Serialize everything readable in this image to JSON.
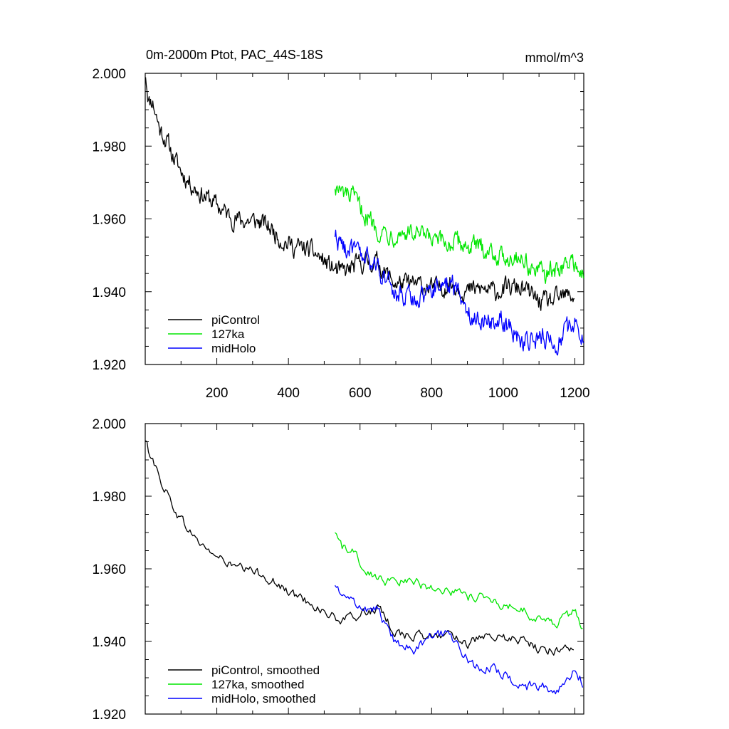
{
  "chart_data": [
    {
      "type": "line",
      "title": "0m-2000m Ptot, PAC_44S-18S",
      "units": "mmol/m^3",
      "xlim": [
        0,
        1225
      ],
      "ylim": [
        1.92,
        2.0
      ],
      "xticks": [
        200,
        400,
        600,
        800,
        1000,
        1200
      ],
      "xtick_labels": [
        "200",
        "400",
        "600",
        "800",
        "1000",
        "1200"
      ],
      "yticks": [
        1.92,
        1.94,
        1.96,
        1.98,
        2.0
      ],
      "ytick_labels": [
        "1.920",
        "1.940",
        "1.960",
        "1.980",
        "2.000"
      ],
      "legend_position": "bottom-left",
      "series": [
        {
          "name": "piControl",
          "color": "#000000",
          "x": [
            1,
            10,
            20,
            40,
            60,
            80,
            100,
            130,
            160,
            200,
            250,
            300,
            350,
            400,
            450,
            500,
            550,
            600,
            650,
            700,
            750,
            800,
            850,
            900,
            950,
            1000,
            1050,
            1100,
            1150,
            1200
          ],
          "values": [
            2.0,
            1.992,
            1.992,
            1.984,
            1.981,
            1.977,
            1.974,
            1.97,
            1.966,
            1.963,
            1.961,
            1.959,
            1.957,
            1.954,
            1.951,
            1.948,
            1.946,
            1.947,
            1.948,
            1.943,
            1.941,
            1.941,
            1.943,
            1.939,
            1.941,
            1.941,
            1.94,
            1.938,
            1.938,
            1.938
          ],
          "noise": 0.0022
        },
        {
          "name": "127ka",
          "color": "#00e600",
          "x": [
            530,
            550,
            580,
            600,
            650,
            700,
            750,
            800,
            850,
            900,
            950,
            1000,
            1050,
            1100,
            1150,
            1200,
            1225
          ],
          "values": [
            1.97,
            1.967,
            1.965,
            1.962,
            1.958,
            1.956,
            1.955,
            1.955,
            1.953,
            1.952,
            1.953,
            1.949,
            1.949,
            1.946,
            1.945,
            1.948,
            1.944
          ],
          "noise": 0.0022
        },
        {
          "name": "midHolo",
          "color": "#0000ff",
          "x": [
            530,
            550,
            580,
            600,
            650,
            700,
            750,
            800,
            850,
            900,
            950,
            1000,
            1050,
            1100,
            1150,
            1200,
            1225
          ],
          "values": [
            1.956,
            1.952,
            1.95,
            1.95,
            1.948,
            1.938,
            1.938,
            1.942,
            1.942,
            1.935,
            1.933,
            1.931,
            1.927,
            1.928,
            1.925,
            1.932,
            1.93
          ],
          "noise": 0.0024
        }
      ]
    },
    {
      "type": "line",
      "title": "",
      "units": "",
      "xlim": [
        0,
        1225
      ],
      "ylim": [
        1.92,
        2.0
      ],
      "xticks": [
        200,
        400,
        600,
        800,
        1000,
        1200
      ],
      "xtick_labels": [],
      "yticks": [
        1.92,
        1.94,
        1.96,
        1.98,
        2.0
      ],
      "ytick_labels": [
        "1.920",
        "1.940",
        "1.960",
        "1.980",
        "2.000"
      ],
      "legend_position": "bottom-left",
      "series": [
        {
          "name": "piControl, smoothed",
          "color": "#000000",
          "x": [
            1,
            10,
            20,
            40,
            60,
            80,
            100,
            130,
            160,
            200,
            250,
            300,
            350,
            400,
            450,
            500,
            550,
            600,
            650,
            700,
            750,
            800,
            850,
            900,
            950,
            1000,
            1050,
            1100,
            1150,
            1200
          ],
          "values": [
            1.995,
            1.992,
            1.991,
            1.984,
            1.981,
            1.977,
            1.974,
            1.97,
            1.966,
            1.963,
            1.961,
            1.959,
            1.957,
            1.954,
            1.951,
            1.948,
            1.946,
            1.947,
            1.949,
            1.943,
            1.941,
            1.941,
            1.943,
            1.939,
            1.941,
            1.941,
            1.94,
            1.938,
            1.938,
            1.938
          ],
          "noise": 0.0011
        },
        {
          "name": "127ka, smoothed",
          "color": "#00e600",
          "x": [
            530,
            550,
            580,
            600,
            650,
            700,
            750,
            800,
            850,
            900,
            950,
            1000,
            1050,
            1100,
            1150,
            1200,
            1225
          ],
          "values": [
            1.97,
            1.966,
            1.964,
            1.961,
            1.958,
            1.956,
            1.956,
            1.955,
            1.954,
            1.952,
            1.953,
            1.949,
            1.949,
            1.946,
            1.945,
            1.948,
            1.944
          ],
          "noise": 0.0011
        },
        {
          "name": "midHolo, smoothed",
          "color": "#0000ff",
          "x": [
            530,
            550,
            580,
            600,
            650,
            700,
            750,
            800,
            850,
            900,
            950,
            1000,
            1050,
            1100,
            1150,
            1200,
            1225
          ],
          "values": [
            1.955,
            1.952,
            1.95,
            1.95,
            1.949,
            1.939,
            1.938,
            1.942,
            1.942,
            1.935,
            1.933,
            1.931,
            1.928,
            1.928,
            1.926,
            1.932,
            1.929
          ],
          "noise": 0.0012
        }
      ]
    }
  ]
}
